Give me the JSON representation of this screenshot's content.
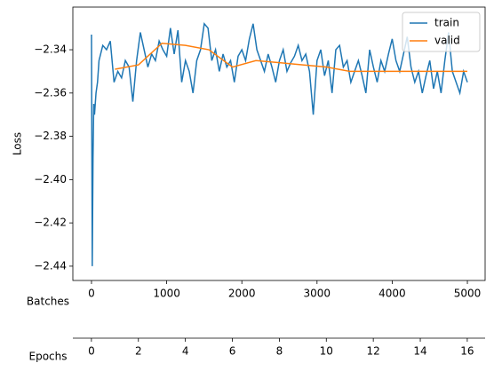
{
  "chart_data": {
    "type": "line",
    "ylabel": "Loss",
    "xlabel": "Batches",
    "x2label": "Epochs",
    "xlim": [
      -248,
      5236
    ],
    "xticks": [
      0,
      1000,
      2000,
      3000,
      4000,
      5000
    ],
    "ylim": [
      -2.4466,
      -2.3203
    ],
    "yticks": [
      {
        "value": -2.44,
        "label": "−2.44"
      },
      {
        "value": -2.42,
        "label": "−2.42"
      },
      {
        "value": -2.4,
        "label": "−2.40"
      },
      {
        "value": -2.38,
        "label": "−2.38"
      },
      {
        "value": -2.36,
        "label": "−2.36"
      },
      {
        "value": -2.34,
        "label": "−2.34"
      }
    ],
    "x2lim": [
      -0.79,
      16.76
    ],
    "x2ticks": [
      0,
      2,
      4,
      6,
      8,
      10,
      12,
      14,
      16
    ],
    "legend": "upper right",
    "series": [
      {
        "name": "train",
        "color": "#1f77b4",
        "x": [
          0,
          10,
          20,
          30,
          40,
          60,
          80,
          100,
          150,
          200,
          250,
          300,
          350,
          400,
          450,
          500,
          550,
          600,
          650,
          700,
          750,
          800,
          850,
          900,
          950,
          1000,
          1050,
          1100,
          1150,
          1200,
          1250,
          1300,
          1350,
          1400,
          1450,
          1500,
          1550,
          1600,
          1650,
          1700,
          1750,
          1800,
          1850,
          1900,
          1950,
          2000,
          2050,
          2100,
          2150,
          2200,
          2250,
          2300,
          2350,
          2400,
          2450,
          2500,
          2550,
          2600,
          2650,
          2700,
          2750,
          2800,
          2850,
          2900,
          2950,
          3000,
          3050,
          3100,
          3150,
          3200,
          3250,
          3300,
          3350,
          3400,
          3450,
          3500,
          3550,
          3600,
          3650,
          3700,
          3750,
          3800,
          3850,
          3900,
          3950,
          4000,
          4050,
          4100,
          4150,
          4200,
          4250,
          4300,
          4350,
          4400,
          4450,
          4500,
          4550,
          4600,
          4650,
          4700,
          4750,
          4800,
          4850,
          4900,
          4950,
          5000
        ],
        "values": [
          -2.333,
          -2.44,
          -2.39,
          -2.365,
          -2.37,
          -2.36,
          -2.355,
          -2.345,
          -2.338,
          -2.34,
          -2.336,
          -2.355,
          -2.35,
          -2.353,
          -2.345,
          -2.348,
          -2.364,
          -2.345,
          -2.332,
          -2.34,
          -2.348,
          -2.342,
          -2.345,
          -2.336,
          -2.34,
          -2.343,
          -2.33,
          -2.342,
          -2.331,
          -2.355,
          -2.345,
          -2.35,
          -2.36,
          -2.345,
          -2.34,
          -2.328,
          -2.33,
          -2.345,
          -2.34,
          -2.35,
          -2.342,
          -2.348,
          -2.345,
          -2.355,
          -2.343,
          -2.34,
          -2.345,
          -2.335,
          -2.328,
          -2.34,
          -2.345,
          -2.35,
          -2.342,
          -2.348,
          -2.355,
          -2.345,
          -2.34,
          -2.35,
          -2.346,
          -2.343,
          -2.338,
          -2.345,
          -2.342,
          -2.35,
          -2.37,
          -2.345,
          -2.34,
          -2.352,
          -2.345,
          -2.36,
          -2.34,
          -2.338,
          -2.348,
          -2.345,
          -2.355,
          -2.35,
          -2.345,
          -2.352,
          -2.36,
          -2.34,
          -2.348,
          -2.355,
          -2.345,
          -2.35,
          -2.342,
          -2.335,
          -2.345,
          -2.35,
          -2.342,
          -2.334,
          -2.348,
          -2.355,
          -2.35,
          -2.36,
          -2.352,
          -2.345,
          -2.358,
          -2.35,
          -2.36,
          -2.345,
          -2.332,
          -2.35,
          -2.355,
          -2.36,
          -2.35,
          -2.355
        ]
      },
      {
        "name": "valid",
        "color": "#ff7f0e",
        "x": [
          312,
          625,
          937,
          1250,
          1562,
          1875,
          2187,
          2500,
          2812,
          3125,
          3437,
          3750,
          4062,
          4375,
          4687,
          5000
        ],
        "values": [
          -2.349,
          -2.347,
          -2.337,
          -2.338,
          -2.34,
          -2.348,
          -2.345,
          -2.346,
          -2.347,
          -2.348,
          -2.35,
          -2.35,
          -2.35,
          -2.35,
          -2.35,
          -2.35
        ]
      }
    ]
  }
}
